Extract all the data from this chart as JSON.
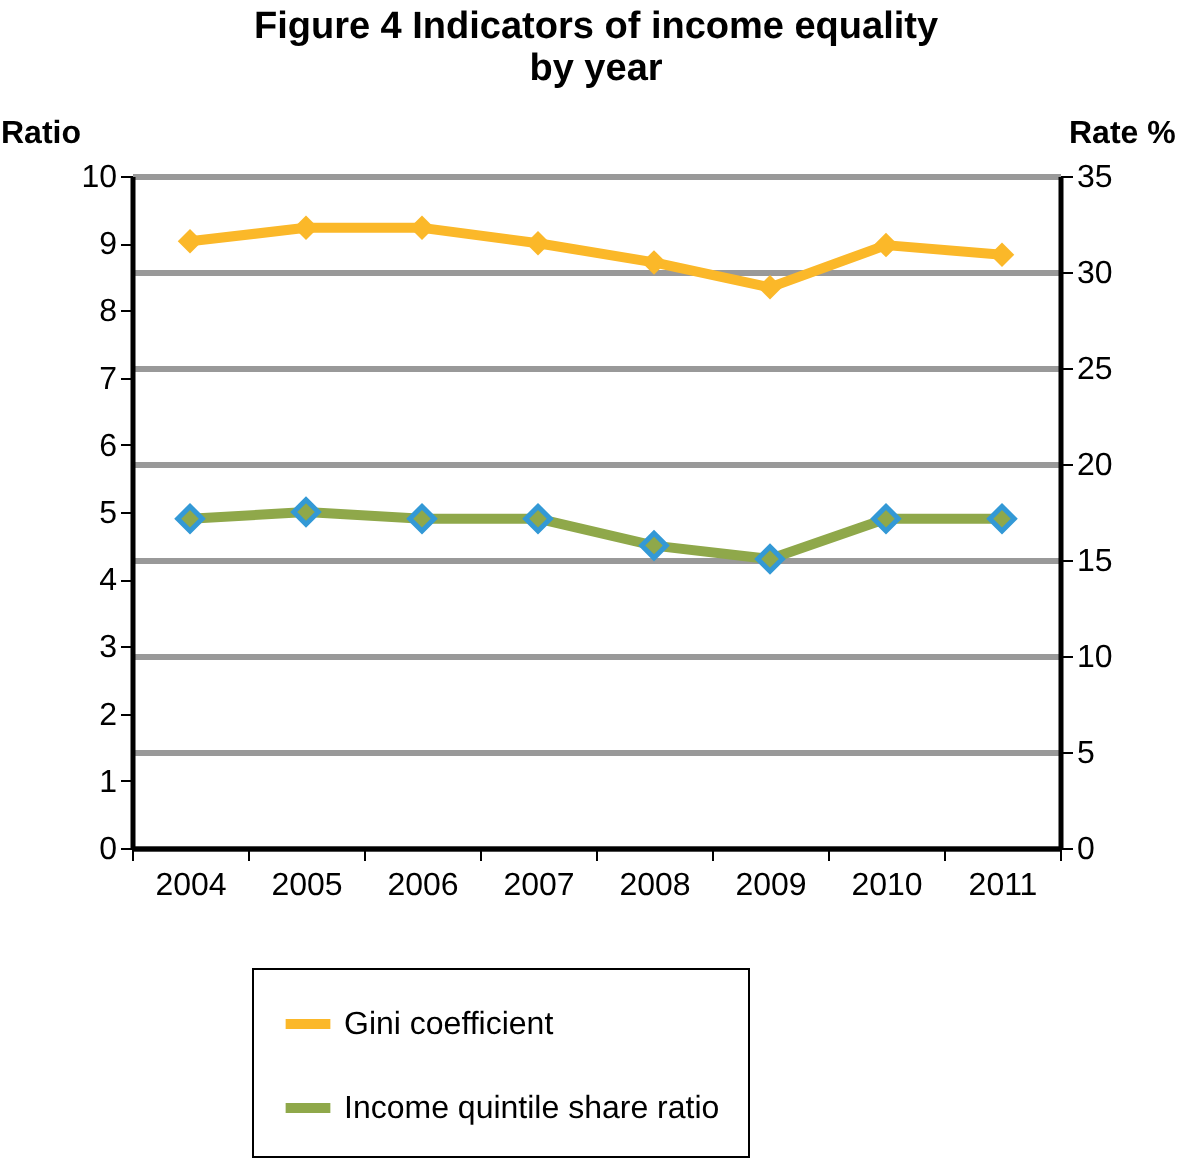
{
  "chart_data": {
    "type": "line",
    "title": "Figure 4  Indicators of  income equality\nby year",
    "ylabel": "Ratio",
    "y2label": "Rate %",
    "categories": [
      "2004",
      "2005",
      "2006",
      "2007",
      "2008",
      "2009",
      "2010",
      "2011"
    ],
    "series": [
      {
        "name": "Gini coefficient",
        "color": "#fbb829",
        "axis": "y2",
        "values": [
          31.6,
          32.3,
          32.3,
          31.5,
          30.5,
          29.2,
          31.4,
          30.9
        ]
      },
      {
        "name": "Income quintile share ratio",
        "color": "#8fa84a",
        "values": [
          4.9,
          5.0,
          4.9,
          4.9,
          4.5,
          4.3,
          4.9,
          4.9
        ]
      }
    ],
    "ylim": [
      0,
      10
    ],
    "yticks": [
      0,
      1,
      2,
      3,
      4,
      5,
      6,
      7,
      8,
      9,
      10
    ],
    "y2lim": [
      0,
      35
    ],
    "y2ticks": [
      0,
      5,
      10,
      15,
      20,
      25,
      30,
      35
    ],
    "grid": "y2",
    "legend": "bottom",
    "marker": "diamond",
    "line_style": "solid"
  }
}
